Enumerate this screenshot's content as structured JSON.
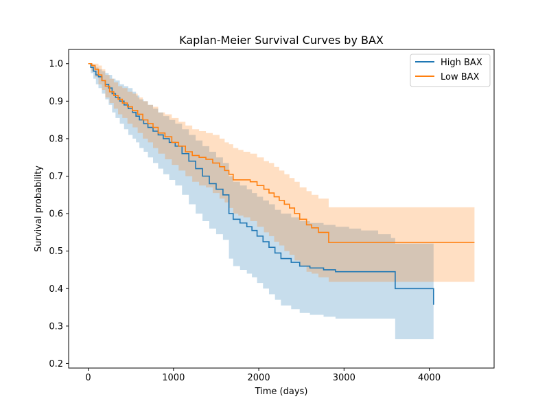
{
  "chart_data": {
    "type": "line",
    "title": "Kaplan-Meier Survival Curves by BAX",
    "xlabel": "Time (days)",
    "ylabel": "Survival probability",
    "xlim": [
      -230,
      4760
    ],
    "ylim": [
      0.188,
      1.038
    ],
    "xticks": [
      0,
      1000,
      2000,
      3000,
      4000
    ],
    "xtick_labels": [
      "0",
      "1000",
      "2000",
      "3000",
      "4000"
    ],
    "yticks": [
      0.2,
      0.3,
      0.4,
      0.5,
      0.6,
      0.7,
      0.8,
      0.9,
      1.0
    ],
    "ytick_labels": [
      "0.2",
      "0.3",
      "0.4",
      "0.5",
      "0.6",
      "0.7",
      "0.8",
      "0.9",
      "1.0"
    ],
    "grid": false,
    "legend_position": "top-right",
    "series": [
      {
        "name": "High BAX",
        "color": "#1f77b4",
        "ci_color": "#1f77b4",
        "x": [
          0,
          30,
          60,
          90,
          120,
          160,
          200,
          240,
          280,
          320,
          370,
          420,
          470,
          520,
          560,
          600,
          650,
          700,
          760,
          820,
          880,
          950,
          1020,
          1100,
          1180,
          1260,
          1340,
          1420,
          1500,
          1580,
          1650,
          1700,
          1780,
          1860,
          1920,
          1980,
          2050,
          2120,
          2190,
          2260,
          2380,
          2480,
          2600,
          2760,
          2900,
          3060,
          3200,
          3400,
          3550,
          3600,
          4050
        ],
        "y": [
          1.0,
          0.99,
          0.98,
          0.97,
          0.965,
          0.955,
          0.945,
          0.935,
          0.92,
          0.91,
          0.9,
          0.89,
          0.88,
          0.87,
          0.86,
          0.85,
          0.84,
          0.83,
          0.82,
          0.81,
          0.8,
          0.79,
          0.78,
          0.76,
          0.74,
          0.72,
          0.7,
          0.68,
          0.665,
          0.65,
          0.6,
          0.585,
          0.575,
          0.565,
          0.555,
          0.54,
          0.525,
          0.51,
          0.495,
          0.48,
          0.47,
          0.46,
          0.455,
          0.45,
          0.445,
          0.445,
          0.445,
          0.445,
          0.445,
          0.4,
          0.357
        ],
        "ci_lower": [
          1.0,
          0.975,
          0.96,
          0.945,
          0.935,
          0.92,
          0.905,
          0.89,
          0.87,
          0.855,
          0.84,
          0.825,
          0.81,
          0.8,
          0.79,
          0.775,
          0.765,
          0.75,
          0.735,
          0.72,
          0.705,
          0.69,
          0.675,
          0.65,
          0.625,
          0.6,
          0.58,
          0.56,
          0.545,
          0.53,
          0.48,
          0.46,
          0.45,
          0.44,
          0.43,
          0.415,
          0.4,
          0.385,
          0.37,
          0.355,
          0.345,
          0.335,
          0.33,
          0.325,
          0.32,
          0.32,
          0.32,
          0.32,
          0.32,
          0.265,
          0.228
        ],
        "ci_upper": [
          1.0,
          1.0,
          0.995,
          0.99,
          0.985,
          0.98,
          0.975,
          0.97,
          0.96,
          0.955,
          0.945,
          0.94,
          0.935,
          0.925,
          0.915,
          0.905,
          0.9,
          0.89,
          0.88,
          0.87,
          0.86,
          0.85,
          0.84,
          0.825,
          0.81,
          0.795,
          0.78,
          0.765,
          0.75,
          0.735,
          0.7,
          0.685,
          0.675,
          0.665,
          0.655,
          0.645,
          0.635,
          0.625,
          0.61,
          0.6,
          0.59,
          0.58,
          0.575,
          0.57,
          0.565,
          0.56,
          0.555,
          0.545,
          0.535,
          0.52,
          0.485
        ]
      },
      {
        "name": "Low BAX",
        "color": "#ff7f0e",
        "ci_color": "#ff7f0e",
        "x": [
          0,
          40,
          80,
          120,
          160,
          200,
          250,
          300,
          350,
          400,
          460,
          520,
          580,
          640,
          700,
          760,
          820,
          900,
          980,
          1060,
          1140,
          1220,
          1300,
          1380,
          1460,
          1540,
          1600,
          1650,
          1700,
          1760,
          1820,
          1900,
          1980,
          2060,
          2120,
          2180,
          2240,
          2300,
          2360,
          2420,
          2480,
          2560,
          2620,
          2700,
          2820,
          3000,
          3200,
          3500,
          4000,
          4530
        ],
        "y": [
          1.0,
          0.995,
          0.985,
          0.97,
          0.955,
          0.94,
          0.925,
          0.915,
          0.905,
          0.895,
          0.885,
          0.875,
          0.865,
          0.85,
          0.84,
          0.83,
          0.815,
          0.805,
          0.79,
          0.78,
          0.765,
          0.755,
          0.75,
          0.745,
          0.735,
          0.725,
          0.715,
          0.705,
          0.69,
          0.69,
          0.69,
          0.685,
          0.675,
          0.665,
          0.655,
          0.645,
          0.635,
          0.625,
          0.615,
          0.6,
          0.585,
          0.57,
          0.562,
          0.55,
          0.523,
          0.523,
          0.523,
          0.523,
          0.523,
          0.523
        ],
        "ci_lower": [
          1.0,
          0.98,
          0.965,
          0.945,
          0.93,
          0.91,
          0.895,
          0.88,
          0.865,
          0.855,
          0.84,
          0.83,
          0.815,
          0.8,
          0.79,
          0.775,
          0.76,
          0.745,
          0.73,
          0.715,
          0.7,
          0.685,
          0.675,
          0.67,
          0.655,
          0.64,
          0.63,
          0.615,
          0.6,
          0.595,
          0.59,
          0.58,
          0.565,
          0.55,
          0.54,
          0.525,
          0.515,
          0.5,
          0.49,
          0.475,
          0.46,
          0.445,
          0.44,
          0.43,
          0.418,
          0.418,
          0.418,
          0.418,
          0.418,
          0.418
        ],
        "ci_upper": [
          1.0,
          1.0,
          1.0,
          0.995,
          0.985,
          0.97,
          0.96,
          0.95,
          0.94,
          0.935,
          0.925,
          0.92,
          0.91,
          0.9,
          0.89,
          0.885,
          0.87,
          0.865,
          0.855,
          0.845,
          0.835,
          0.825,
          0.82,
          0.815,
          0.81,
          0.8,
          0.79,
          0.785,
          0.775,
          0.77,
          0.765,
          0.76,
          0.75,
          0.74,
          0.735,
          0.725,
          0.715,
          0.705,
          0.695,
          0.685,
          0.67,
          0.66,
          0.65,
          0.64,
          0.617,
          0.617,
          0.617,
          0.617,
          0.617,
          0.617
        ]
      }
    ]
  }
}
